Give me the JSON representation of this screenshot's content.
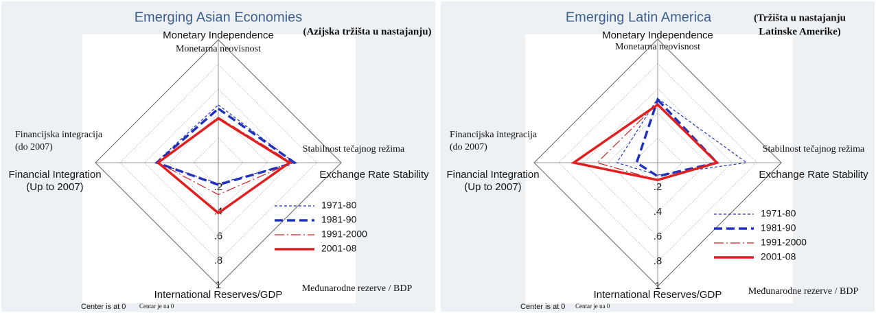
{
  "chart_data": [
    {
      "type": "radar",
      "title": "Emerging Asian Economies",
      "title_hr": [
        "(Azijska tržišta u nastajanju)"
      ],
      "axes": [
        {
          "name": [
            "Monetary Independence"
          ],
          "name_hr": [
            "Monetarna neovisnost"
          ]
        },
        {
          "name": [
            "Exchange Rate Stability"
          ],
          "name_hr": [
            "Stabilnost tečajnog režima"
          ]
        },
        {
          "name": [
            "International Reserves/GDP"
          ],
          "name_hr": [
            "Međunarodne rezerve / BDP"
          ]
        },
        {
          "name": [
            "Financial Integration",
            "(Up to 2007)"
          ],
          "name_hr": [
            "Financijska integracija",
            "(do 2007)"
          ]
        }
      ],
      "rlim": [
        0,
        1
      ],
      "rticks": [
        {
          "value": 0.2,
          "label": ".2"
        },
        {
          "value": 0.4,
          "label": ".4"
        },
        {
          "value": 0.6,
          "label": ".6"
        },
        {
          "value": 0.8,
          "label": ".8"
        },
        1
      ],
      "note": "Center is at 0",
      "note_hr": "Centar je na 0",
      "series": [
        {
          "name": "1971-80",
          "color": "#2233bb",
          "line": "dash",
          "weight": "thin",
          "values": [
            0.47,
            0.62,
            0.17,
            0.51
          ]
        },
        {
          "name": "1981-90",
          "color": "#2233bb",
          "line": "dash",
          "weight": "thick",
          "values": [
            0.44,
            0.62,
            0.18,
            0.5
          ]
        },
        {
          "name": "1991-2000",
          "color": "#cc2222",
          "line": "dashdot",
          "weight": "thin",
          "values": [
            0.37,
            0.6,
            0.26,
            0.49
          ]
        },
        {
          "name": "2001-08",
          "color": "#e02020",
          "line": "solid",
          "weight": "thick",
          "values": [
            0.36,
            0.58,
            0.41,
            0.49
          ]
        }
      ]
    },
    {
      "type": "radar",
      "title": "Emerging Latin America",
      "title_hr": [
        "(Tržišta u nastajanju",
        "Latinske Amerike)"
      ],
      "axes": [
        {
          "name": [
            "Monetary Independence"
          ],
          "name_hr": [
            "Monetarna neovisnost"
          ]
        },
        {
          "name": [
            "Exchange Rate Stability"
          ],
          "name_hr": [
            "Stabilnost tečajnog režima"
          ]
        },
        {
          "name": [
            "International Reserves/GDP"
          ],
          "name_hr": [
            "Međunarodne rezerve / BDP"
          ]
        },
        {
          "name": [
            "Financial Integration",
            "(Up to 2007)"
          ],
          "name_hr": [
            "Financijska integracija",
            "(do 2007)"
          ]
        }
      ],
      "rlim": [
        0,
        1
      ],
      "rticks": [
        {
          "value": 0.2,
          "label": ".2"
        },
        {
          "value": 0.4,
          "label": ".4"
        },
        {
          "value": 0.6,
          "label": ".6"
        },
        {
          "value": 0.8,
          "label": ".8"
        },
        1
      ],
      "note": "Center is at 0",
      "note_hr": "Centar je na 0",
      "series": [
        {
          "name": "1971-80",
          "color": "#2233bb",
          "line": "dash",
          "weight": "thin",
          "values": [
            0.52,
            0.72,
            0.1,
            0.33
          ]
        },
        {
          "name": "1981-90",
          "color": "#2233bb",
          "line": "dash",
          "weight": "thick",
          "values": [
            0.51,
            0.48,
            0.11,
            0.17
          ]
        },
        {
          "name": "1991-2000",
          "color": "#cc2222",
          "line": "dashdot",
          "weight": "thin",
          "values": [
            0.48,
            0.48,
            0.14,
            0.49
          ]
        },
        {
          "name": "2001-08",
          "color": "#e02020",
          "line": "solid",
          "weight": "thick",
          "values": [
            0.47,
            0.48,
            0.14,
            0.68
          ]
        }
      ]
    }
  ]
}
